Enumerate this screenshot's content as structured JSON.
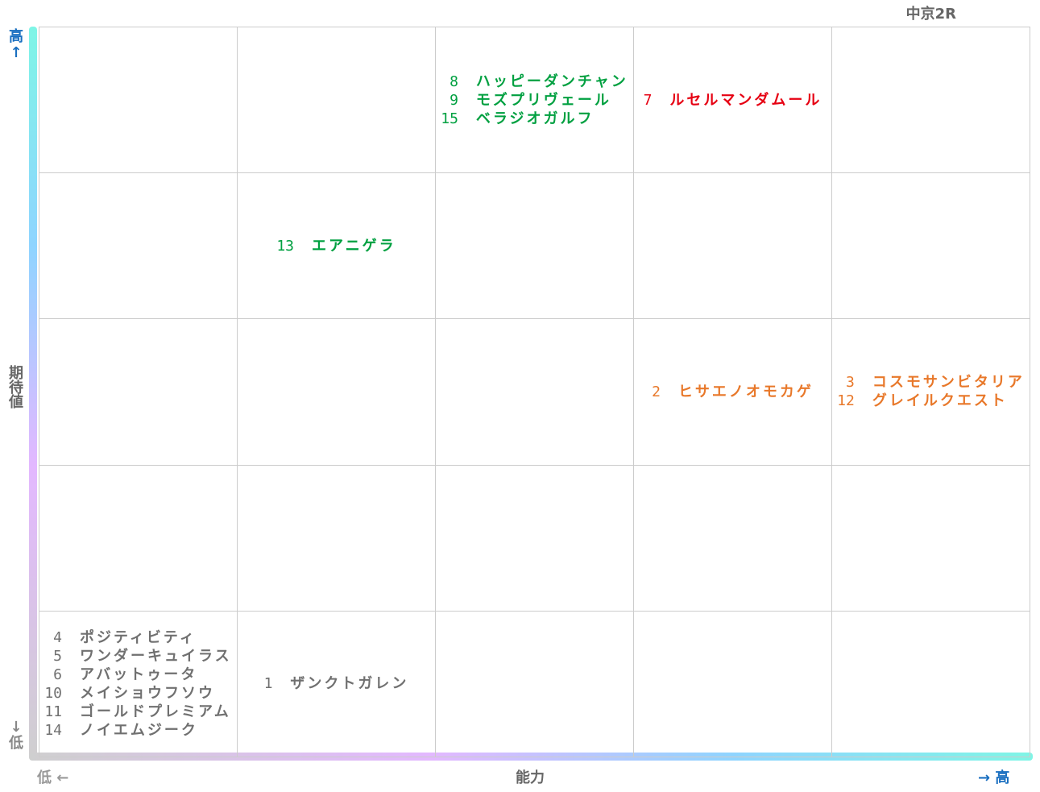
{
  "title": "中京2R",
  "y_axis": {
    "high": "高↑",
    "name": "期待値",
    "low": "↓低"
  },
  "x_axis": {
    "low": "低 ←",
    "name": "能力",
    "high": "→ 高"
  },
  "grid": [
    [
      {
        "entries": []
      },
      {
        "entries": []
      },
      {
        "color": "#00a040",
        "entries": [
          {
            "number": 8,
            "name": "ハッピーダンチャン"
          },
          {
            "number": 9,
            "name": "モズプリヴェール"
          },
          {
            "number": 15,
            "name": "ベラジオガルフ"
          }
        ]
      },
      {
        "color": "#e60012",
        "entries": [
          {
            "number": 7,
            "name": "ルセルマンダムール"
          }
        ]
      },
      {
        "entries": []
      }
    ],
    [
      {
        "entries": []
      },
      {
        "color": "#00a040",
        "entries": [
          {
            "number": 13,
            "name": "エアニゲラ"
          }
        ]
      },
      {
        "entries": []
      },
      {
        "entries": []
      },
      {
        "entries": []
      }
    ],
    [
      {
        "entries": []
      },
      {
        "entries": []
      },
      {
        "entries": []
      },
      {
        "color": "#e8782a",
        "entries": [
          {
            "number": 2,
            "name": "ヒサエノオモカゲ"
          }
        ]
      },
      {
        "color": "#e8782a",
        "entries": [
          {
            "number": 3,
            "name": "コスモサンビタリア"
          },
          {
            "number": 12,
            "name": "グレイルクエスト"
          }
        ]
      }
    ],
    [
      {
        "entries": []
      },
      {
        "entries": []
      },
      {
        "entries": []
      },
      {
        "entries": []
      },
      {
        "entries": []
      }
    ],
    [
      {
        "color": "#707070",
        "entries": [
          {
            "number": 4,
            "name": "ポジティビティ"
          },
          {
            "number": 5,
            "name": "ワンダーキュイラス"
          },
          {
            "number": 6,
            "name": "アバットゥータ"
          },
          {
            "number": 10,
            "name": "メイショウフソウ"
          },
          {
            "number": 11,
            "name": "ゴールドプレミアム"
          },
          {
            "number": 14,
            "name": "ノイエムジーク"
          }
        ]
      },
      {
        "color": "#707070",
        "entries": [
          {
            "number": 1,
            "name": "ザンクトガレン"
          }
        ]
      },
      {
        "entries": []
      },
      {
        "entries": []
      },
      {
        "entries": []
      }
    ]
  ]
}
